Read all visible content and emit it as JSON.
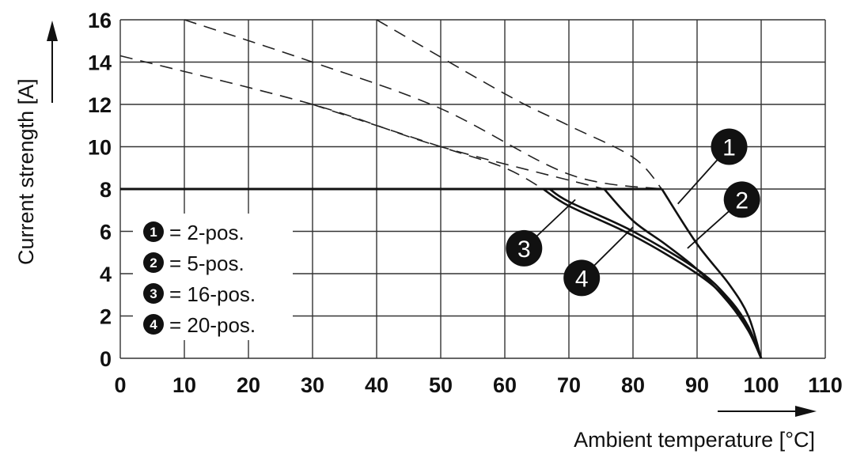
{
  "chart_data": {
    "type": "line",
    "title": "",
    "xlabel": "Ambient temperature [°C]",
    "ylabel": "Current strength [A]",
    "xlim": [
      0,
      110
    ],
    "ylim": [
      0,
      16
    ],
    "x_ticks": [
      "0",
      "10",
      "20",
      "30",
      "40",
      "50",
      "60",
      "70",
      "80",
      "90",
      "100",
      "110"
    ],
    "y_ticks": [
      "0",
      "2",
      "4",
      "6",
      "8",
      "10",
      "12",
      "14",
      "16"
    ],
    "grid": true,
    "legend": {
      "placement": "bottom-left",
      "entries": [
        {
          "num": "1",
          "text": "= 2-pos."
        },
        {
          "num": "2",
          "text": "= 5-pos."
        },
        {
          "num": "3",
          "text": "= 16-pos."
        },
        {
          "num": "4",
          "text": "= 20-pos."
        }
      ]
    },
    "rated_current": 8,
    "series": [
      {
        "id": "1",
        "solid": [
          [
            0,
            8
          ],
          [
            84.5,
            8
          ],
          [
            90,
            5.4
          ],
          [
            95,
            3.5
          ],
          [
            98,
            2.0
          ],
          [
            100,
            0
          ]
        ],
        "dashed": [
          [
            10,
            16
          ],
          [
            30,
            14
          ],
          [
            50,
            11.8
          ],
          [
            70,
            8.7
          ],
          [
            84.5,
            8
          ]
        ]
      },
      {
        "id": "2",
        "solid": [
          [
            0,
            8
          ],
          [
            75.5,
            8
          ],
          [
            80,
            6.5
          ],
          [
            85,
            5.4
          ],
          [
            90,
            4.2
          ],
          [
            95,
            2.6
          ],
          [
            98,
            1.3
          ],
          [
            100,
            0
          ]
        ],
        "dashed": [
          [
            0,
            14.3
          ],
          [
            30,
            12
          ],
          [
            50,
            10
          ],
          [
            75.5,
            8
          ]
        ]
      },
      {
        "id": "3",
        "solid": [
          [
            0,
            8
          ],
          [
            67,
            8
          ],
          [
            70,
            7.4
          ],
          [
            80,
            6.0
          ],
          [
            90,
            4.2
          ],
          [
            95,
            2.8
          ],
          [
            98,
            1.5
          ],
          [
            100,
            0
          ]
        ],
        "dashed": [
          [
            40,
            16
          ],
          [
            60,
            12.5
          ],
          [
            70,
            11
          ],
          [
            80,
            9.5
          ],
          [
            84.5,
            8
          ]
        ]
      },
      {
        "id": "4",
        "solid": [
          [
            0,
            8
          ],
          [
            66,
            8
          ],
          [
            70,
            7.2
          ],
          [
            80,
            5.8
          ],
          [
            90,
            4.0
          ],
          [
            95,
            2.7
          ],
          [
            98,
            1.4
          ],
          [
            100,
            0
          ]
        ],
        "dashed": [
          [
            30,
            12
          ],
          [
            50,
            10
          ],
          [
            60,
            9
          ],
          [
            66,
            8
          ]
        ]
      }
    ],
    "callouts": [
      {
        "num": "1",
        "x": 95,
        "y": 10,
        "target": [
          87,
          7.3
        ]
      },
      {
        "num": "2",
        "x": 97,
        "y": 7.5,
        "target": [
          88.5,
          5.2
        ]
      },
      {
        "num": "3",
        "x": 63,
        "y": 5.2,
        "target": [
          71,
          7.5
        ]
      },
      {
        "num": "4",
        "x": 72,
        "y": 3.8,
        "target": [
          80,
          6.2
        ]
      }
    ]
  }
}
